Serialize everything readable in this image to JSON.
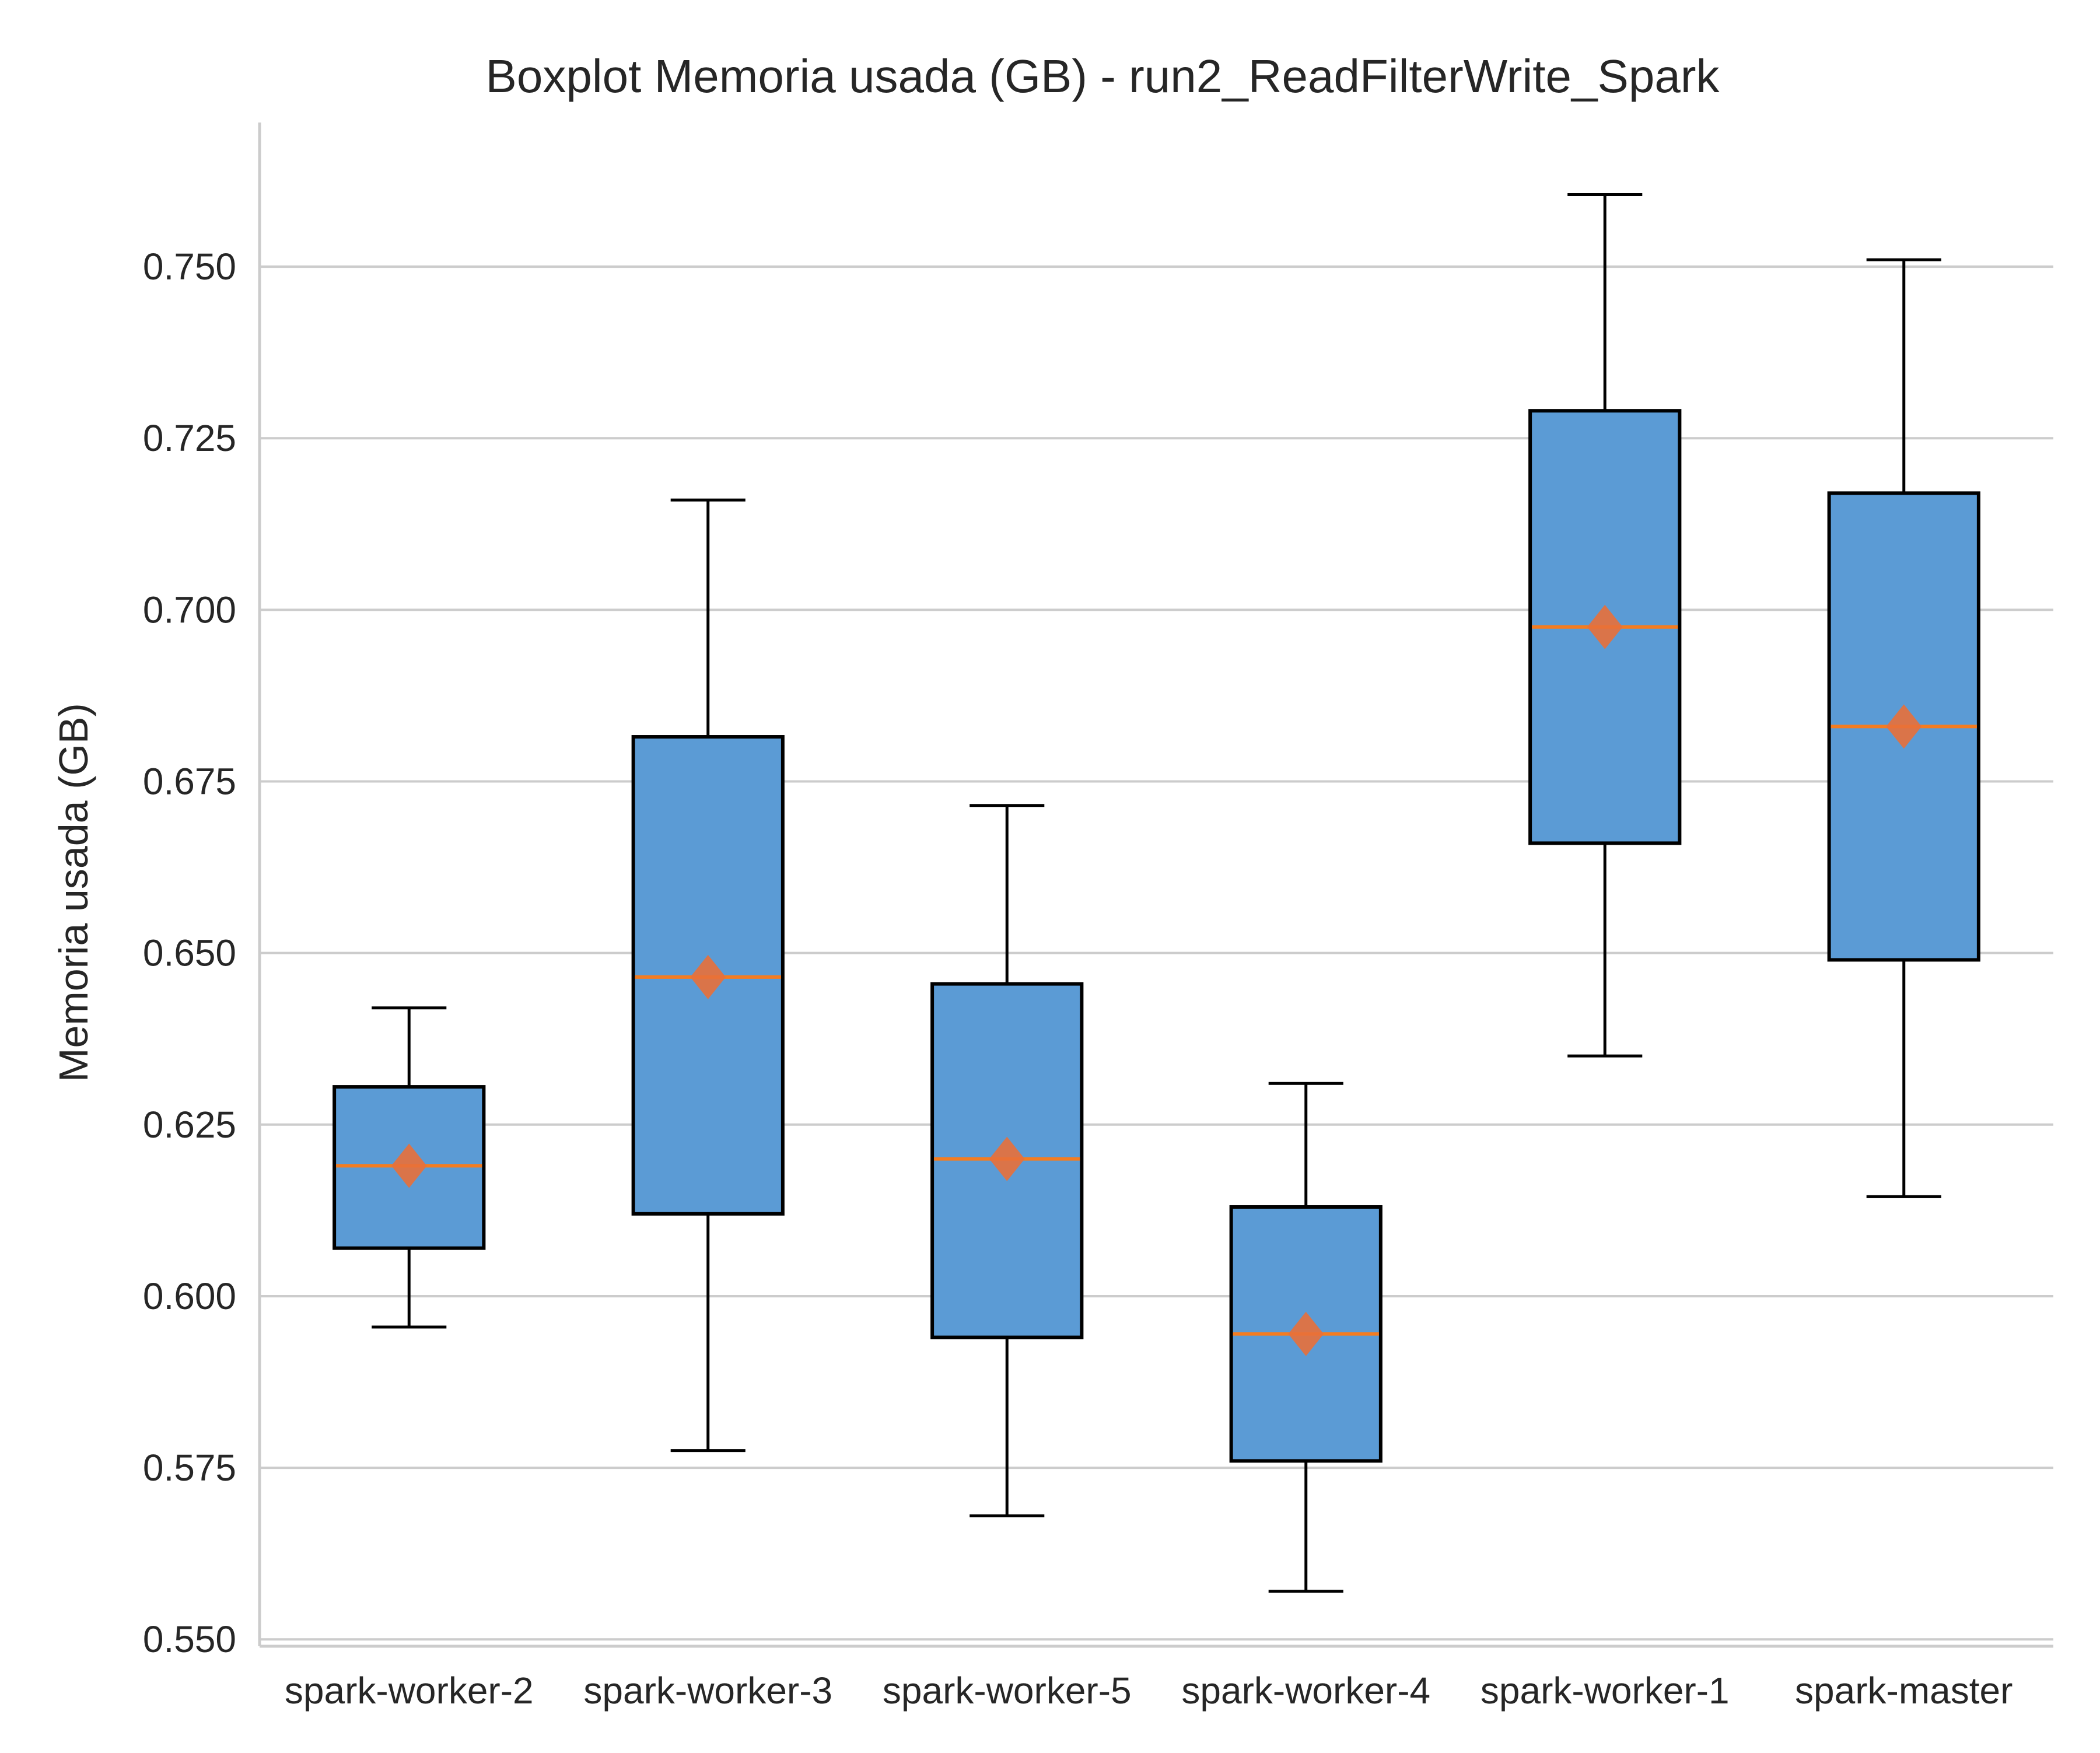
{
  "chart_data": {
    "type": "boxplot",
    "title": "Boxplot Memoria usada (GB) - run2_ReadFilterWrite_Spark",
    "xlabel": "",
    "ylabel": "Memoria usada (GB)",
    "ylim": [
      0.549,
      0.771
    ],
    "yticks": [
      0.55,
      0.575,
      0.6,
      0.625,
      0.65,
      0.675,
      0.7,
      0.725,
      0.75
    ],
    "ytick_labels": [
      "0.550",
      "0.575",
      "0.600",
      "0.625",
      "0.650",
      "0.675",
      "0.700",
      "0.725",
      "0.750"
    ],
    "grid": "horizontal",
    "categories": [
      "spark-worker-2",
      "spark-worker-3",
      "spark-worker-5",
      "spark-worker-4",
      "spark-worker-1",
      "spark-master"
    ],
    "boxes": [
      {
        "name": "spark-worker-2",
        "whisker_low": 0.5955,
        "q1": 0.607,
        "median": 0.619,
        "q3": 0.6305,
        "whisker_high": 0.642,
        "mean": 0.619
      },
      {
        "name": "spark-worker-3",
        "whisker_low": 0.5775,
        "q1": 0.612,
        "median": 0.6465,
        "q3": 0.6815,
        "whisker_high": 0.716,
        "mean": 0.6465
      },
      {
        "name": "spark-worker-5",
        "whisker_low": 0.568,
        "q1": 0.594,
        "median": 0.62,
        "q3": 0.6455,
        "whisker_high": 0.6715,
        "mean": 0.62
      },
      {
        "name": "spark-worker-4",
        "whisker_low": 0.557,
        "q1": 0.576,
        "median": 0.5945,
        "q3": 0.613,
        "whisker_high": 0.631,
        "mean": 0.5945
      },
      {
        "name": "spark-worker-1",
        "whisker_low": 0.635,
        "q1": 0.666,
        "median": 0.6975,
        "q3": 0.729,
        "whisker_high": 0.7605,
        "mean": 0.6975
      },
      {
        "name": "spark-master",
        "whisker_low": 0.6145,
        "q1": 0.649,
        "median": 0.683,
        "q3": 0.717,
        "whisker_high": 0.751,
        "mean": 0.683
      }
    ],
    "colors": {
      "box_fill": "#5b9bd5",
      "box_edge": "#000000",
      "median": "#f47c20",
      "mean_marker": "#e8703a",
      "grid": "#cccccc",
      "axis": "#cccccc"
    }
  }
}
